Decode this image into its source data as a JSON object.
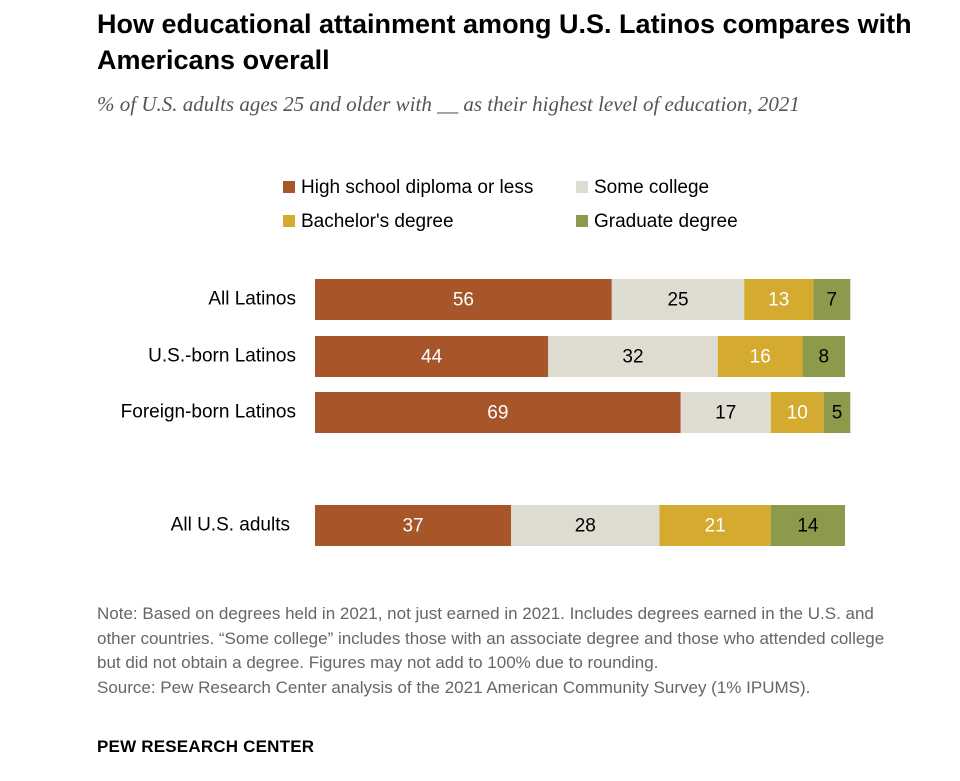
{
  "title": "How educational attainment among U.S. Latinos compares with Americans overall",
  "subtitle": "% of U.S. adults ages 25 and older with __ as their highest level of education, 2021",
  "note": "Note: Based on degrees held in 2021, not just earned in 2021. Includes degrees earned in the U.S. and other countries. “Some college” includes those with an associate degree and those who attended college but did not obtain a degree. Figures may not add to 100% due to rounding.",
  "source": "Source: Pew Research Center analysis of the 2021 American Community Survey (1% IPUMS).",
  "brand": "PEW RESEARCH CENTER",
  "chart_data": {
    "type": "bar",
    "orientation": "horizontal",
    "stacked": true,
    "categories": [
      "All Latinos",
      "U.S.-born Latinos",
      "Foreign-born Latinos",
      "All U.S. adults"
    ],
    "series": [
      {
        "name": "High school diploma or less",
        "color": "#A65628",
        "label_color": "#ffffff",
        "values": [
          56,
          44,
          69,
          37
        ]
      },
      {
        "name": "Some college",
        "color": "#DEDBD0",
        "label_color": "#000000",
        "values": [
          25,
          32,
          17,
          28
        ]
      },
      {
        "name": "Bachelor's degree",
        "color": "#D4AA2F",
        "label_color": "#ffffff",
        "values": [
          13,
          16,
          10,
          21
        ]
      },
      {
        "name": "Graduate degree",
        "color": "#8B9A4B",
        "label_color": "#000000",
        "values": [
          7,
          8,
          5,
          14
        ]
      }
    ],
    "xlim": [
      0,
      100
    ],
    "legend_position": "top",
    "grid": false
  }
}
